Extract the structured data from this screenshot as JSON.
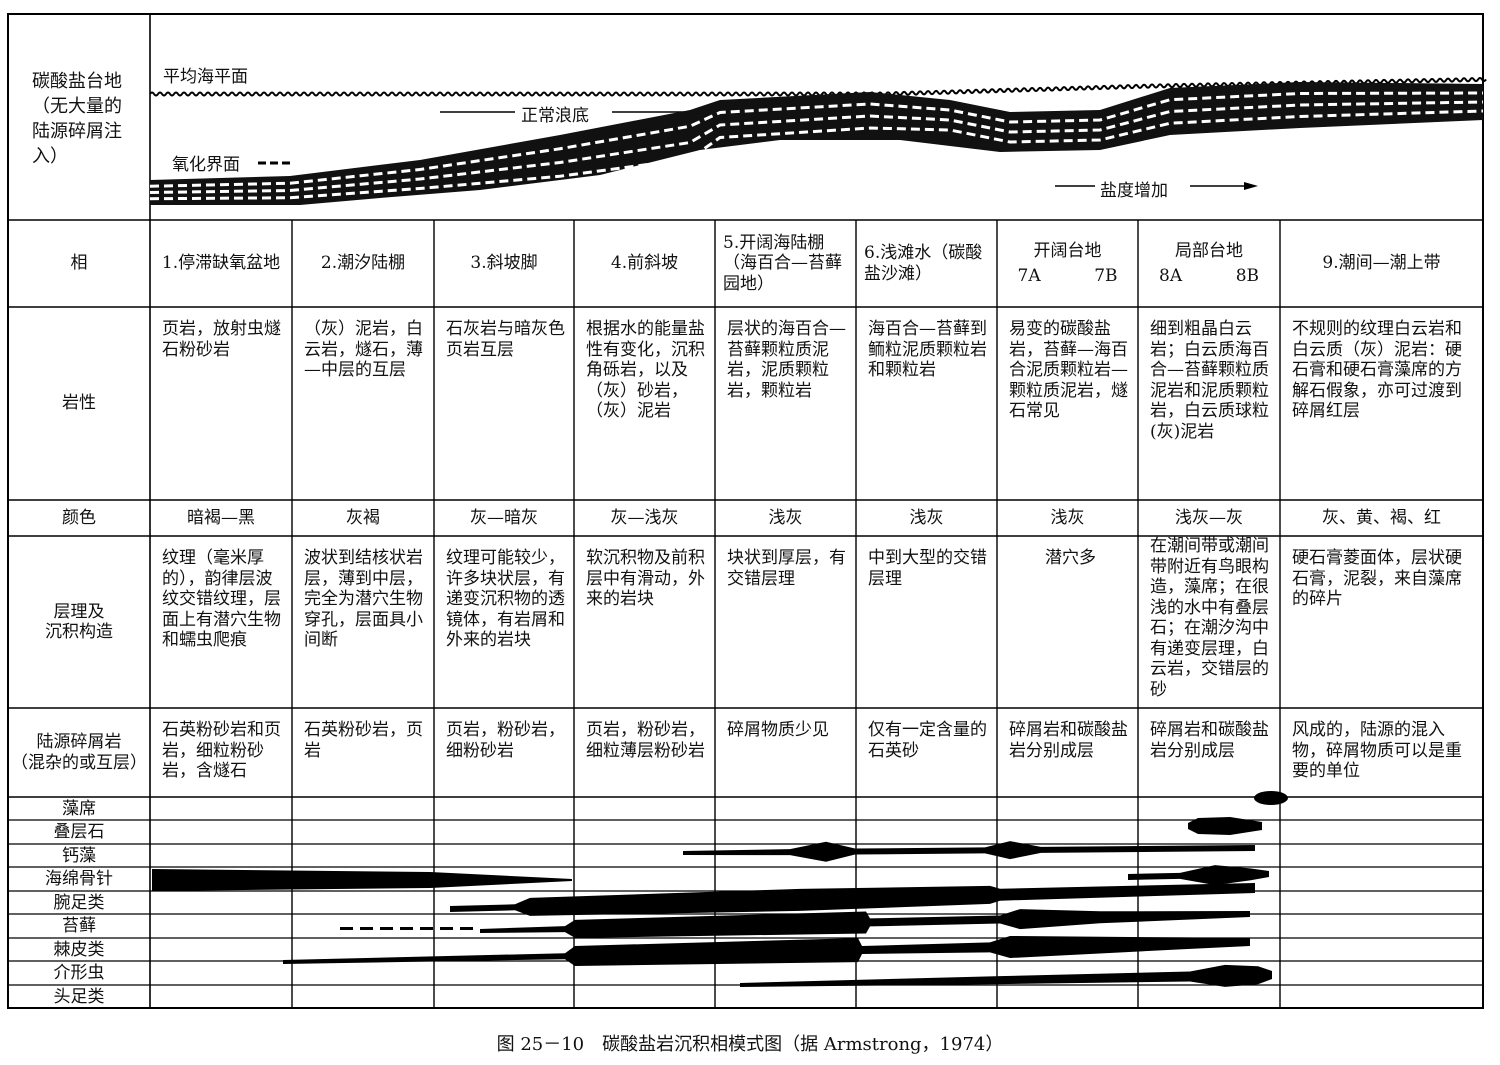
{
  "left_header": "碳酸盐台地（无大量的陆源碎屑注入）",
  "diagram": {
    "sea_level": "平均海平面",
    "wave_base": "正常浪底",
    "oxidation": "氧化界面",
    "salinity": "盐度增加"
  },
  "row_labels": {
    "facies": "相",
    "lithology": "岩性",
    "color": "颜色",
    "structure": "层理及\n沉积构造",
    "terrigenous": "陆源碎屑岩\n（混杂的或互层）"
  },
  "facies": [
    {
      "header": "1.停滞缺氧盆地",
      "lithology": "页岩，放射虫燧石粉砂岩",
      "color": "暗褐—黑",
      "structure": "纹理（毫米厚的），韵律层波纹交错纹理，层面上有潜穴生物和蠕虫爬痕",
      "terrigenous": "石英粉砂岩和页岩，细粒粉砂岩，含燧石"
    },
    {
      "header": "2.潮汐陆棚",
      "lithology": "（灰）泥岩，白云岩，燧石，薄—中层的互层",
      "color": "灰褐",
      "structure": "波状到结核状岩层，薄到中层，完全为潜穴生物穿孔，层面具小间断",
      "terrigenous": "石英粉砂岩，页岩"
    },
    {
      "header": "3.斜坡脚",
      "lithology": "石灰岩与暗灰色页岩互层",
      "color": "灰—暗灰",
      "structure": "纹理可能较少，许多块状层，有递变沉积物的透镜体，有岩屑和外来的岩块",
      "terrigenous": "页岩，粉砂岩，细粉砂岩"
    },
    {
      "header": "4.前斜坡",
      "lithology": "根据水的能量盐性有变化，沉积角砾岩，以及（灰）砂岩，（灰）泥岩",
      "color": "灰—浅灰",
      "structure": "软沉积物及前积层中有滑动，外来的岩块",
      "terrigenous": "页岩，粉砂岩，细粒薄层粉砂岩"
    },
    {
      "header": "5.开阔海陆棚（海百合—苔藓园地）",
      "lithology": "层状的海百合—苔藓颗粒质泥岩，泥质颗粒岩，颗粒岩",
      "color": "浅灰",
      "structure": "块状到厚层，有交错层理",
      "terrigenous": "碎屑物质少见"
    },
    {
      "header": "6.浅滩水（碳酸盐沙滩）",
      "lithology": "海百合—苔藓到鲕粒泥质颗粒岩和颗粒岩",
      "color": "浅灰",
      "structure": "中到大型的交错层理",
      "terrigenous": "仅有一定含量的石英砂"
    },
    {
      "header": "开阔台地",
      "sub": [
        "7A",
        "7B"
      ],
      "lithology": "易变的碳酸盐岩，苔藓—海百合泥质颗粒岩—颗粒质泥岩，燧石常见",
      "color": "浅灰",
      "structure": "潜穴多",
      "terrigenous": "碎屑岩和碳酸盐岩分别成层"
    },
    {
      "header": "局部台地",
      "sub": [
        "8A",
        "8B"
      ],
      "lithology": "细到粗晶白云岩；白云质海百合—苔藓颗粒质泥岩和泥质颗粒岩，白云质球粒(灰)泥岩",
      "color": "浅灰—灰",
      "structure": "在潮间带或潮间带附近有鸟眼构造，藻席；在很浅的水中有叠层石；在潮汐沟中有递变层理，白云岩，交错层的砂",
      "terrigenous": "碎屑岩和碳酸盐岩分别成层"
    },
    {
      "header": "9.潮间—潮上带",
      "lithology": "不规则的纹理白云岩和白云质（灰）泥岩：硬石膏和硬石膏藻席的方解石假象，亦可过渡到碎屑红层",
      "color": "灰、黄、褐、红",
      "structure": "硬石膏菱面体，层状硬石膏，泥裂，来自藻席的碎片",
      "terrigenous": "风成的，陆源的混入物，碎屑物质可以是重要的单位"
    }
  ],
  "fossils": [
    "藻席",
    "叠层石",
    "钙藻",
    "海绵骨针",
    "腕足类",
    "苔藓",
    "棘皮类",
    "介形虫",
    "头足类"
  ],
  "caption": "图 25－10　碳酸盐岩沉积相模式图（据 Armstrong，1974）"
}
